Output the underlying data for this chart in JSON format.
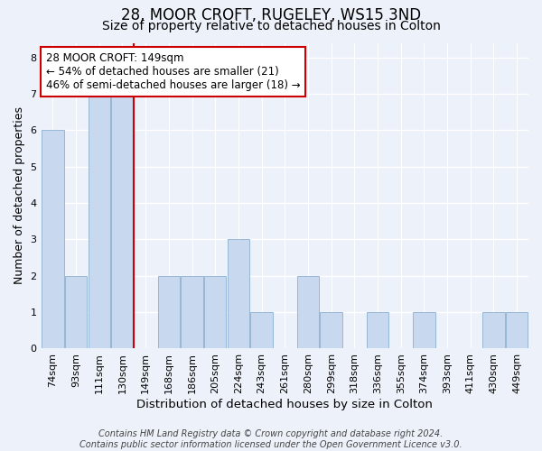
{
  "title1": "28, MOOR CROFT, RUGELEY, WS15 3ND",
  "title2": "Size of property relative to detached houses in Colton",
  "xlabel": "Distribution of detached houses by size in Colton",
  "ylabel": "Number of detached properties",
  "categories": [
    "74sqm",
    "93sqm",
    "111sqm",
    "130sqm",
    "149sqm",
    "168sqm",
    "186sqm",
    "205sqm",
    "224sqm",
    "243sqm",
    "261sqm",
    "280sqm",
    "299sqm",
    "318sqm",
    "336sqm",
    "355sqm",
    "374sqm",
    "393sqm",
    "411sqm",
    "430sqm",
    "449sqm"
  ],
  "values": [
    6,
    2,
    7,
    7,
    0,
    2,
    2,
    2,
    3,
    1,
    0,
    2,
    1,
    0,
    1,
    0,
    1,
    0,
    0,
    1,
    1
  ],
  "bar_color": "#c8d8ee",
  "bar_edgecolor": "#8aafd0",
  "vline_x": 3.5,
  "vline_color": "#cc0000",
  "annotation_box_text": "28 MOOR CROFT: 149sqm\n← 54% of detached houses are smaller (21)\n46% of semi-detached houses are larger (18) →",
  "annotation_box_color": "#cc0000",
  "annotation_box_fill": "#ffffff",
  "ylim": [
    0,
    8.4
  ],
  "yticks": [
    0,
    1,
    2,
    3,
    4,
    5,
    6,
    7,
    8
  ],
  "footnote": "Contains HM Land Registry data © Crown copyright and database right 2024.\nContains public sector information licensed under the Open Government Licence v3.0.",
  "background_color": "#edf1f9",
  "grid_color": "#ffffff",
  "title1_fontsize": 12,
  "title2_fontsize": 10,
  "xlabel_fontsize": 9.5,
  "ylabel_fontsize": 9,
  "tick_fontsize": 8,
  "annotation_fontsize": 8.5,
  "footnote_fontsize": 7
}
